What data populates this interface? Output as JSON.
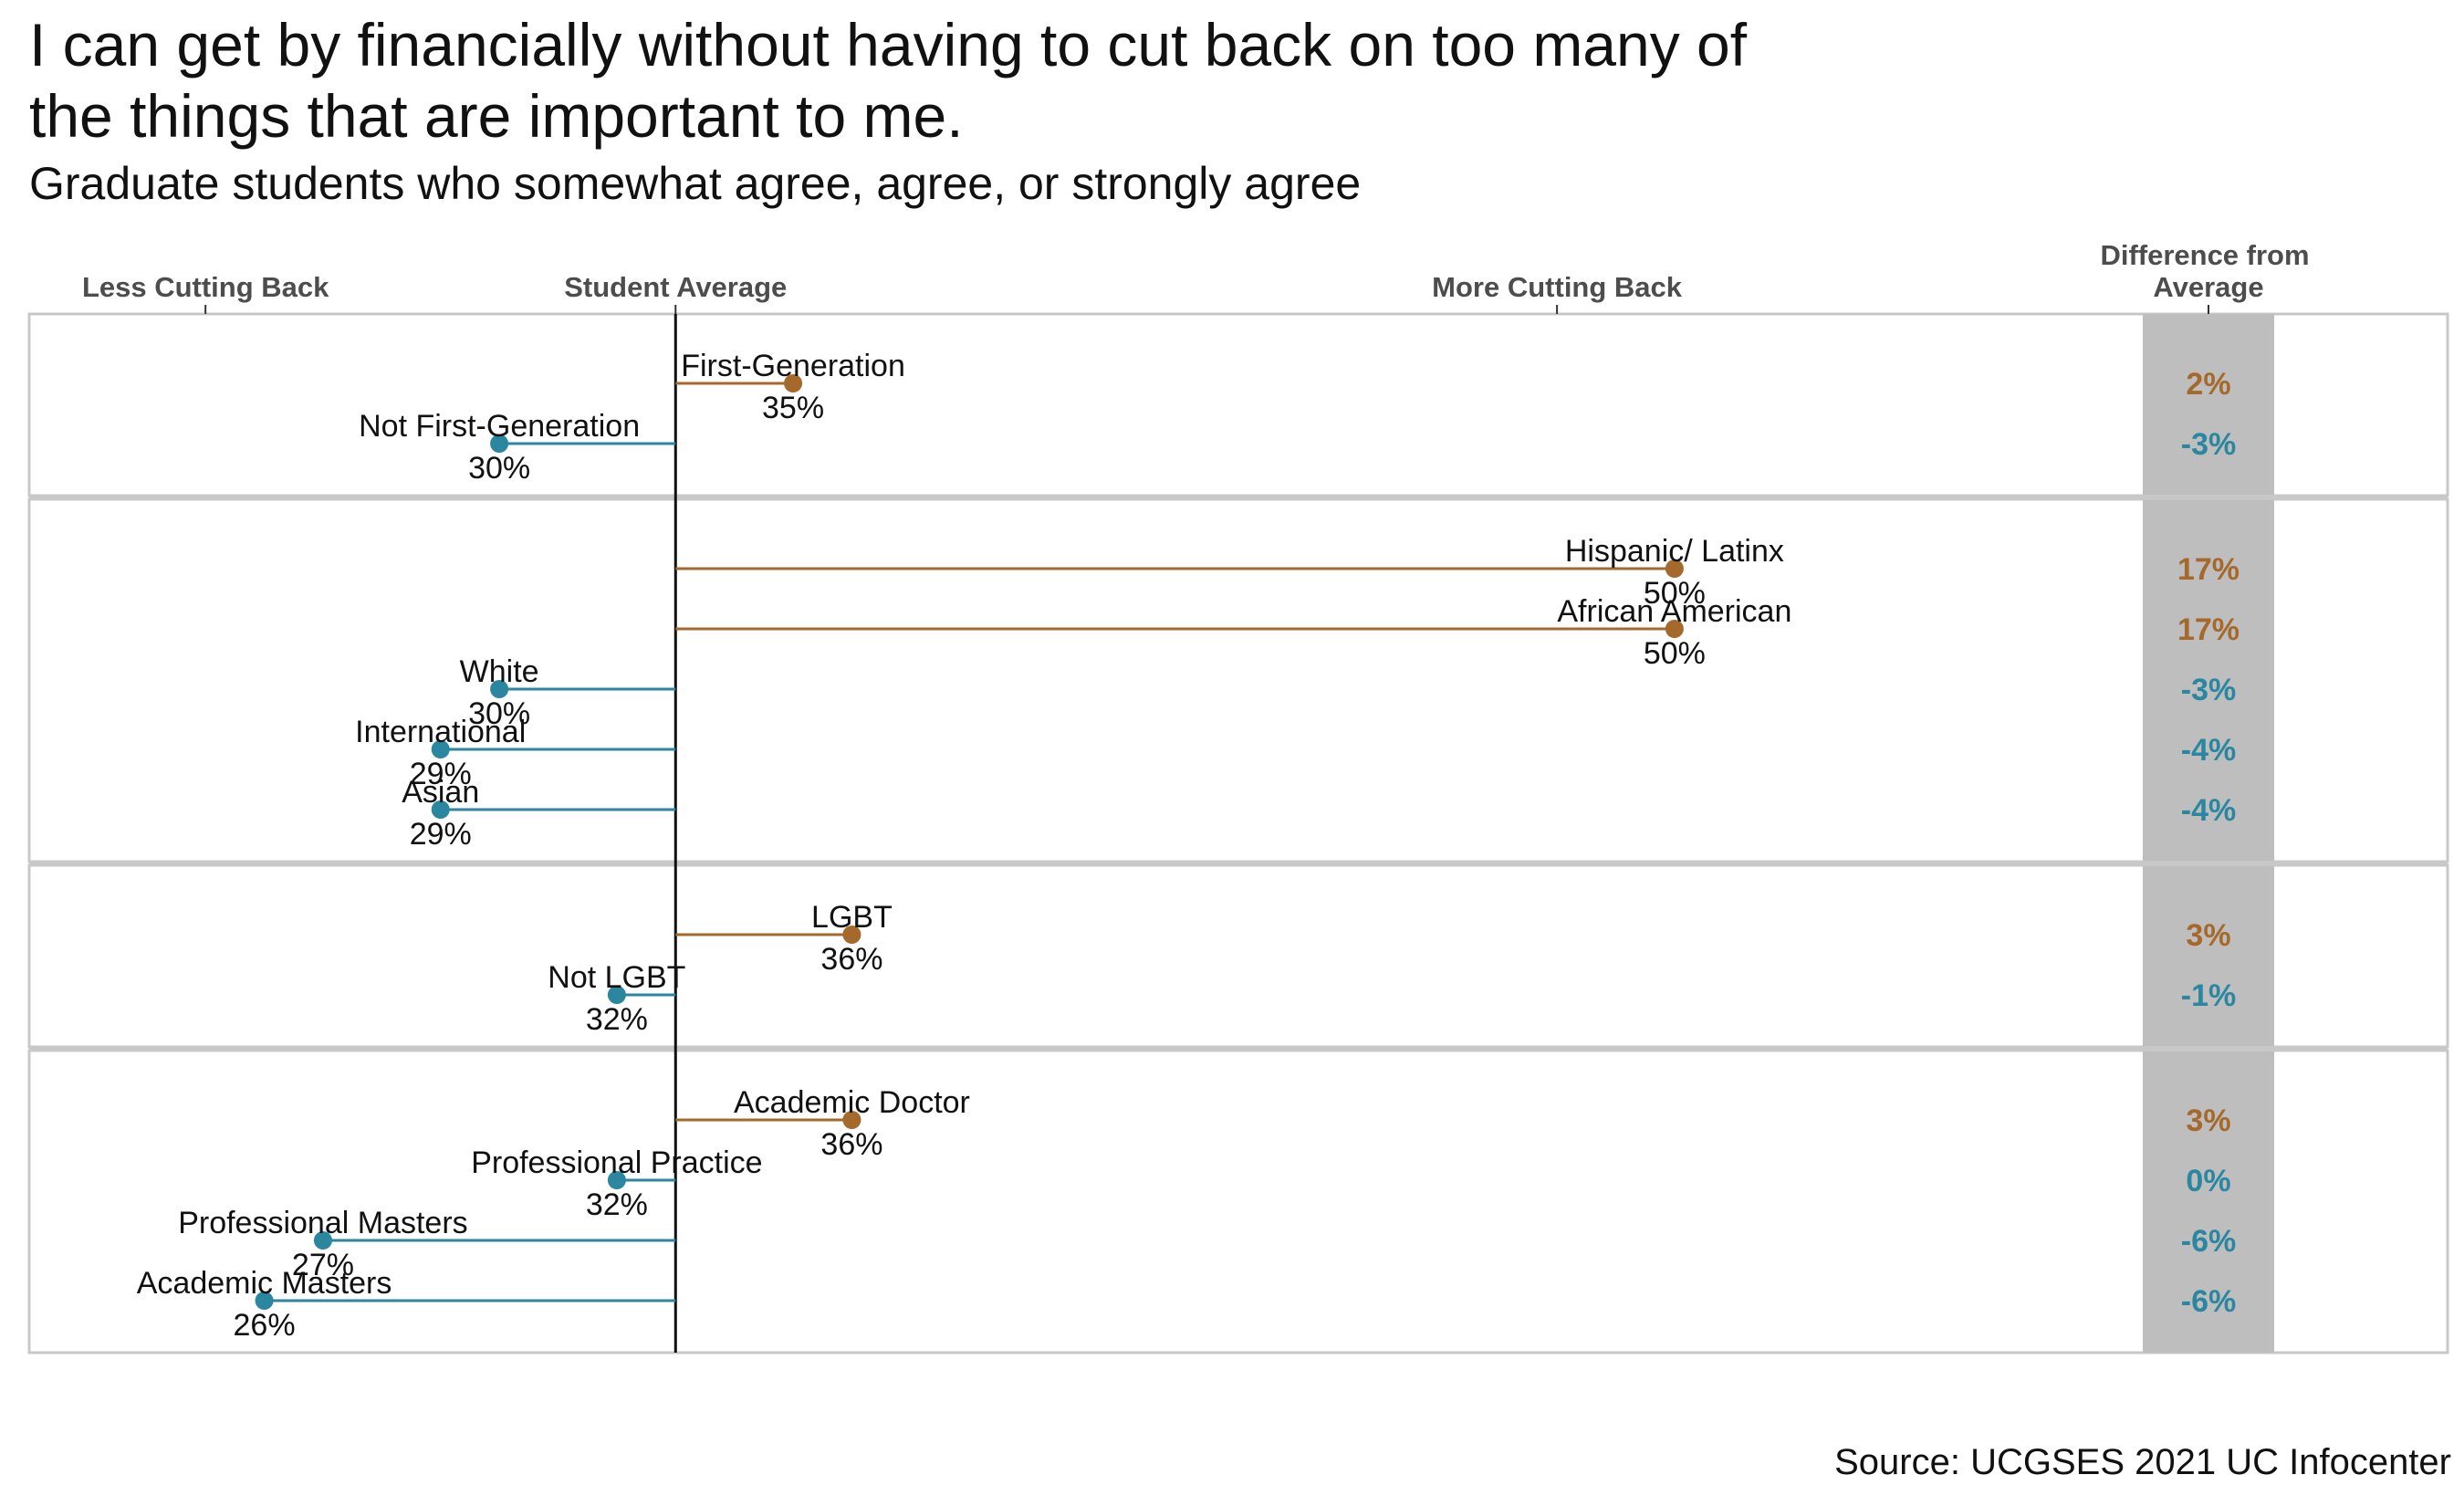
{
  "title": "I can get by financially without having to cut back on too many of the things that are important to me.",
  "subtitle": "Graduate students who somewhat agree, agree, or strongly agree",
  "source": "Source: UCGSES 2021 UC Infocenter",
  "colors": {
    "above": "#a5692b",
    "below": "#2b86a0",
    "diff_band": "#bebebe"
  },
  "chart_data": {
    "type": "lollipop",
    "average": 33,
    "xlim": [
      22,
      58
    ],
    "axis_ticks": [
      {
        "label": "Less Cutting Back",
        "x": 25
      },
      {
        "label": "Student Average",
        "x": 33
      },
      {
        "label": "More Cutting Back",
        "x": 48
      }
    ],
    "diff_header": "Difference from Average",
    "groups": [
      {
        "items": [
          {
            "label": "First-Generation",
            "value": 35,
            "value_label": "35%",
            "diff": "2%",
            "dir": "above"
          },
          {
            "label": "Not First-Generation",
            "value": 30,
            "value_label": "30%",
            "diff": "-3%",
            "dir": "below"
          }
        ]
      },
      {
        "items": [
          {
            "label": "Hispanic/ Latinx",
            "value": 50,
            "value_label": "50%",
            "diff": "17%",
            "dir": "above"
          },
          {
            "label": "African American",
            "value": 50,
            "value_label": "50%",
            "diff": "17%",
            "dir": "above"
          },
          {
            "label": "White",
            "value": 30,
            "value_label": "30%",
            "diff": "-3%",
            "dir": "below"
          },
          {
            "label": "International",
            "value": 29,
            "value_label": "29%",
            "diff": "-4%",
            "dir": "below"
          },
          {
            "label": "Asian",
            "value": 29,
            "value_label": "29%",
            "diff": "-4%",
            "dir": "below"
          }
        ]
      },
      {
        "items": [
          {
            "label": "LGBT",
            "value": 36,
            "value_label": "36%",
            "diff": "3%",
            "dir": "above"
          },
          {
            "label": "Not LGBT",
            "value": 32,
            "value_label": "32%",
            "diff": "-1%",
            "dir": "below"
          }
        ]
      },
      {
        "items": [
          {
            "label": "Academic Doctor",
            "value": 36,
            "value_label": "36%",
            "diff": "3%",
            "dir": "above"
          },
          {
            "label": "Professional Practice",
            "value": 32,
            "value_label": "32%",
            "diff": "0%",
            "dir": "below"
          },
          {
            "label": "Professional Masters",
            "value": 27,
            "value_label": "27%",
            "diff": "-6%",
            "dir": "below"
          },
          {
            "label": "Academic Masters",
            "value": 26,
            "value_label": "26%",
            "diff": "-6%",
            "dir": "below"
          }
        ]
      }
    ]
  }
}
